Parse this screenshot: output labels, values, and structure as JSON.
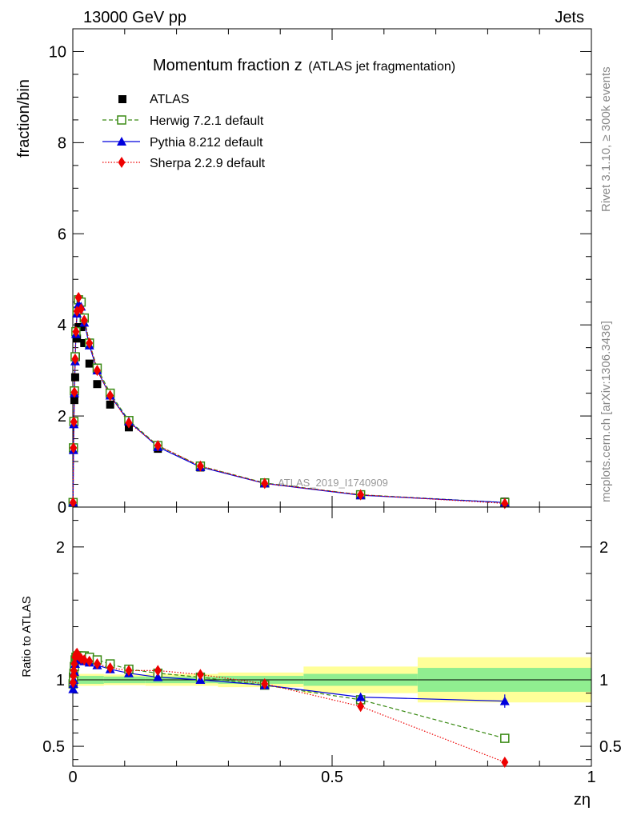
{
  "header": {
    "left": "13000 GeV pp",
    "right": "Jets"
  },
  "side_labels": {
    "rivet": "Rivet 3.1.10, ≥ 300k events",
    "mcplots": "mcplots.cern.ch [arXiv:1306.3436]"
  },
  "colors": {
    "atlas": "#000000",
    "herwig": "#3a8a14",
    "pythia": "#0000dd",
    "sherpa": "#ee0000",
    "band_inner": "#90ee90",
    "band_outer": "#ffff99"
  },
  "chart_data": [
    {
      "type": "scatter",
      "title_main": "Momentum fraction z",
      "title_sub": "(ATLAS jet fragmentation)",
      "watermark": "ATLAS_2019_I1740909",
      "ylabel": "fraction/bin",
      "xlim": [
        0,
        1
      ],
      "ylim": [
        0,
        10.5
      ],
      "yticks": [
        0,
        2,
        4,
        6,
        8,
        10
      ],
      "legend": [
        "ATLAS",
        "Herwig 7.2.1 default",
        "Pythia 8.212 default",
        "Sherpa 2.2.9 default"
      ],
      "x": [
        0.0005,
        0.0012,
        0.002,
        0.003,
        0.0045,
        0.006,
        0.008,
        0.011,
        0.016,
        0.022,
        0.032,
        0.047,
        0.072,
        0.108,
        0.164,
        0.246,
        0.37,
        0.555,
        0.833
      ],
      "series": [
        {
          "name": "ATLAS",
          "marker": "filled-square",
          "values": [
            0.1,
            1.27,
            1.85,
            2.35,
            2.85,
            3.3,
            3.7,
            3.95,
            3.95,
            3.6,
            3.15,
            2.7,
            2.25,
            1.75,
            1.28,
            0.87,
            0.52,
            0.27,
            0.12
          ]
        },
        {
          "name": "Herwig 7.2.1 default",
          "marker": "open-square",
          "values": [
            0.1,
            1.3,
            1.88,
            2.55,
            3.3,
            3.85,
            4.3,
            4.55,
            4.5,
            4.15,
            3.6,
            3.05,
            2.5,
            1.9,
            1.35,
            0.9,
            0.53,
            0.27,
            0.1
          ]
        },
        {
          "name": "Pythia 8.212 default",
          "marker": "filled-triangle",
          "values": [
            0.1,
            1.25,
            1.82,
            2.5,
            3.2,
            3.8,
            4.25,
            4.45,
            4.4,
            4.05,
            3.55,
            3.0,
            2.45,
            1.88,
            1.32,
            0.88,
            0.52,
            0.26,
            0.1
          ]
        },
        {
          "name": "Sherpa 2.2.9 default",
          "marker": "diamond",
          "values": [
            0.1,
            1.3,
            1.87,
            2.52,
            3.25,
            3.85,
            4.3,
            4.6,
            4.35,
            4.1,
            3.6,
            3.0,
            2.45,
            1.85,
            1.35,
            0.9,
            0.52,
            0.27,
            0.08
          ]
        }
      ]
    },
    {
      "type": "scatter",
      "ylabel": "Ratio to ATLAS",
      "xlabel": "zη",
      "xlim": [
        0,
        1
      ],
      "ylim": [
        0.35,
        2.3
      ],
      "yticks": [
        0.5,
        1,
        2
      ],
      "xticks": [
        0,
        0.5,
        1
      ],
      "x": [
        0.0005,
        0.0012,
        0.002,
        0.003,
        0.0045,
        0.006,
        0.008,
        0.011,
        0.016,
        0.022,
        0.032,
        0.047,
        0.072,
        0.108,
        0.164,
        0.246,
        0.37,
        0.555,
        0.833
      ],
      "band_edges": [
        0,
        0.06,
        0.14,
        0.28,
        0.445,
        0.665,
        1.0
      ],
      "band_inner": [
        0.03,
        0.025,
        0.025,
        0.03,
        0.045,
        0.09
      ],
      "band_outer": [
        0.045,
        0.04,
        0.045,
        0.055,
        0.1,
        0.17
      ],
      "series": [
        {
          "name": "Herwig 7.2.1 default",
          "values": [
            0.97,
            1.02,
            1.05,
            1.1,
            1.15,
            1.17,
            1.18,
            1.18,
            1.18,
            1.18,
            1.17,
            1.15,
            1.12,
            1.08,
            1.05,
            1.02,
            0.96,
            0.85,
            0.56
          ]
        },
        {
          "name": "Pythia 8.212 default",
          "values": [
            0.93,
            0.97,
            1.0,
            1.06,
            1.12,
            1.15,
            1.16,
            1.16,
            1.15,
            1.14,
            1.13,
            1.11,
            1.08,
            1.05,
            1.02,
            1.0,
            0.96,
            0.87,
            0.84
          ],
          "errors": [
            0.01,
            0.01,
            0.01,
            0.01,
            0.01,
            0.01,
            0.01,
            0.01,
            0.01,
            0.01,
            0.01,
            0.01,
            0.01,
            0.01,
            0.01,
            0.01,
            0.01,
            0.02,
            0.05
          ]
        },
        {
          "name": "Sherpa 2.2.9 default",
          "values": [
            0.98,
            1.03,
            1.07,
            1.12,
            1.17,
            1.19,
            1.2,
            1.18,
            1.16,
            1.15,
            1.14,
            1.12,
            1.09,
            1.07,
            1.07,
            1.04,
            0.97,
            0.8,
            0.38
          ]
        }
      ]
    }
  ]
}
